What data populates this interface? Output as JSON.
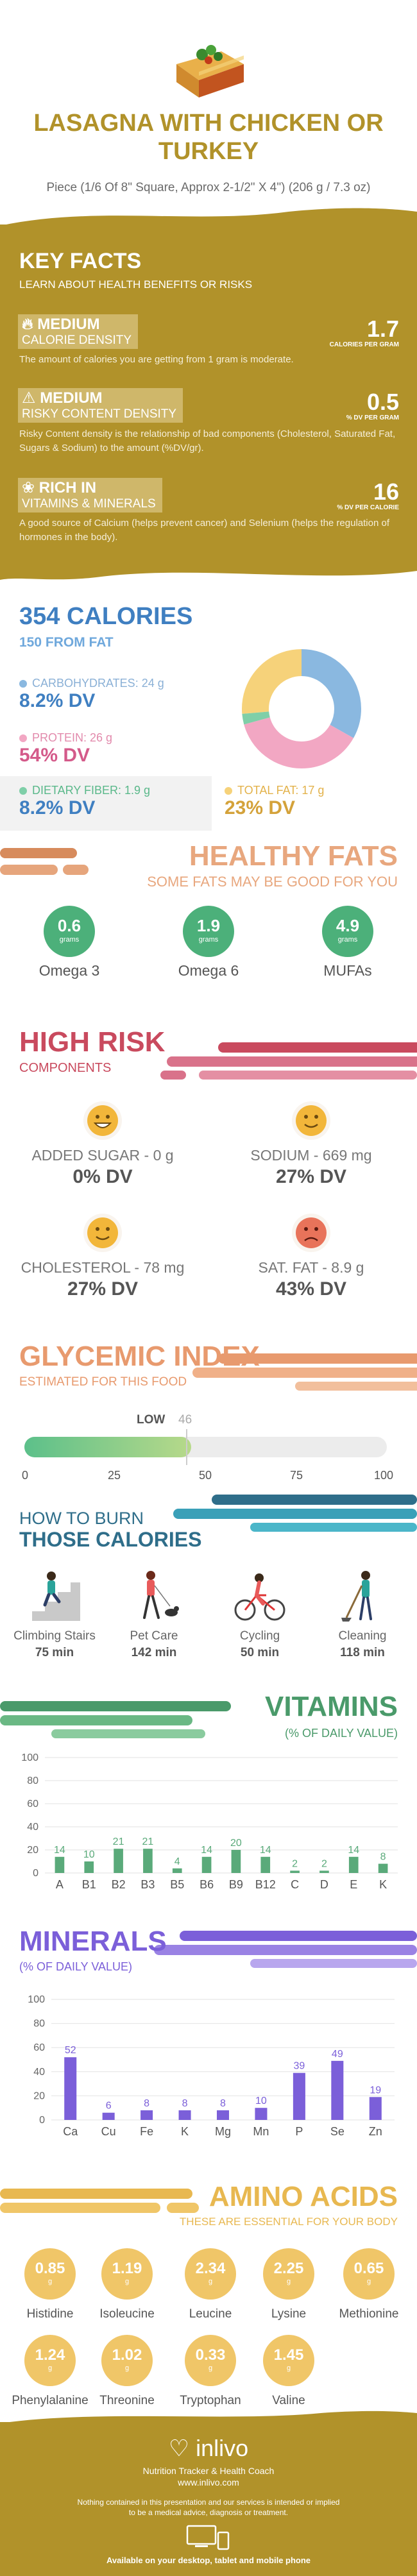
{
  "header": {
    "title": "LASAGNA WITH CHICKEN OR TURKEY",
    "serving": "Piece (1/6 Of 8\" Square, Approx 2-1/2\" X 4\") (206 g / 7.3 oz)"
  },
  "key_facts": {
    "title": "KEY FACTS",
    "subtitle": "LEARN ABOUT HEALTH BENEFITS OR RISKS",
    "items": [
      {
        "tag1": "MEDIUM",
        "tag2": "CALORIE DENSITY",
        "value": "1.7",
        "unit": "CALORIES PER GRAM",
        "desc": "The amount of calories you are getting from 1 gram is moderate."
      },
      {
        "tag1": "MEDIUM",
        "tag2": "RISKY CONTENT DENSITY",
        "value": "0.5",
        "unit": "% DV PER GRAM",
        "desc": "Risky Content density is the relationship of bad components (Cholesterol, Saturated Fat, Sugars & Sodium) to the amount (%DV/gr)."
      },
      {
        "tag1": "RICH  IN",
        "tag2": "VITAMINS & MINERALS",
        "value": "16",
        "unit": "% DV PER CALORIE",
        "desc": "A good source of Calcium (helps prevent cancer) and Selenium (helps the regulation of hormones in the body)."
      }
    ]
  },
  "calories": {
    "title": "354 CALORIES",
    "from_fat": "150 FROM FAT",
    "macros": [
      {
        "label": "CARBOHYDRATES: 24 g",
        "dv": "8.2% DV",
        "color": "#8ab8e0"
      },
      {
        "label": "PROTEIN: 26 g",
        "dv": "54% DV",
        "color": "#f2a7c3"
      },
      {
        "label": "DIETARY FIBER: 1.9 g",
        "dv": "8.2% DV",
        "color": "#7fcfa8"
      },
      {
        "label": "TOTAL FAT: 17 g",
        "dv": "23% DV",
        "color": "#f6d27a"
      }
    ]
  },
  "fats": {
    "title": "HEALTHY FATS",
    "subtitle": "SOME FATS MAY BE GOOD FOR YOU",
    "items": [
      {
        "value": "0.6",
        "unit": "grams",
        "label": "Omega 3"
      },
      {
        "value": "1.9",
        "unit": "grams",
        "label": "Omega 6"
      },
      {
        "value": "4.9",
        "unit": "grams",
        "label": "MUFAs"
      }
    ]
  },
  "risk": {
    "title": "HIGH RISK",
    "subtitle": "COMPONENTS",
    "items": [
      {
        "label": "ADDED SUGAR - 0 g",
        "dv": "0% DV",
        "face": "happy-face-icon"
      },
      {
        "label": "SODIUM - 669 mg",
        "dv": "27% DV",
        "face": "smile-face-icon"
      },
      {
        "label": "CHOLESTEROL - 78 mg",
        "dv": "27% DV",
        "face": "smile-face-icon"
      },
      {
        "label": "SAT. FAT - 8.9 g",
        "dv": "43% DV",
        "face": "sad-face-icon"
      }
    ]
  },
  "gi": {
    "title": "GLYCEMIC INDEX",
    "subtitle": "ESTIMATED FOR THIS FOOD",
    "level": "LOW",
    "value": 46,
    "value_text": "46",
    "ticks": [
      "0",
      "25",
      "50",
      "75",
      "100"
    ]
  },
  "burn": {
    "title1": "HOW TO BURN",
    "title2": "THOSE CALORIES",
    "items": [
      {
        "label": "Climbing Stairs",
        "min": "75 min"
      },
      {
        "label": "Pet Care",
        "min": "142 min"
      },
      {
        "label": "Cycling",
        "min": "50 min"
      },
      {
        "label": "Cleaning",
        "min": "118 min"
      }
    ]
  },
  "vitamins_title": "VITAMINS",
  "vitamins_sub": "(% OF DAILY VALUE)",
  "minerals_title": "MINERALS",
  "minerals_sub": "(% OF DAILY VALUE)",
  "amino": {
    "title": "AMINO ACIDS",
    "subtitle": "THESE ARE ESSENTIAL FOR YOUR BODY",
    "unit": "g",
    "items": [
      {
        "value": "0.85",
        "label": "Histidine"
      },
      {
        "value": "1.19",
        "label": "Isoleucine"
      },
      {
        "value": "2.34",
        "label": "Leucine"
      },
      {
        "value": "2.25",
        "label": "Lysine"
      },
      {
        "value": "0.65",
        "label": "Methionine"
      },
      {
        "value": "1.24",
        "label": "Phenylalanine"
      },
      {
        "value": "1.02",
        "label": "Threonine"
      },
      {
        "value": "0.33",
        "label": "Tryptophan"
      },
      {
        "value": "1.45",
        "label": "Valine"
      }
    ]
  },
  "footer": {
    "brand": "inlivo",
    "tagline": "Nutrition Tracker & Health Coach",
    "site": "www.inlivo.com",
    "disclaimer1": "Nothing contained in this presentation and our services is intended or implied",
    "disclaimer2": "to be a medical advice, diagnosis or treatment.",
    "available": "Available on your desktop, tablet and mobile phone"
  },
  "chart_data": [
    {
      "type": "bar",
      "title": "VITAMINS",
      "subtitle": "(% OF DAILY VALUE)",
      "categories": [
        "A",
        "B1",
        "B2",
        "B3",
        "B5",
        "B6",
        "B9",
        "B12",
        "C",
        "D",
        "E",
        "K"
      ],
      "values": [
        14,
        10,
        21,
        21,
        4,
        14,
        20,
        14,
        2,
        2,
        14,
        8
      ],
      "yticks": [
        "0",
        "20",
        "40",
        "60",
        "80",
        "100"
      ],
      "ylim": [
        0,
        100
      ],
      "color": "#5aaa7a"
    },
    {
      "type": "bar",
      "title": "MINERALS",
      "subtitle": "(% OF DAILY VALUE)",
      "categories": [
        "Ca",
        "Cu",
        "Fe",
        "K",
        "Mg",
        "Mn",
        "P",
        "Se",
        "Zn"
      ],
      "values": [
        52,
        6,
        8,
        8,
        8,
        10,
        39,
        49,
        19
      ],
      "yticks": [
        "0",
        "20",
        "40",
        "60",
        "80",
        "100"
      ],
      "ylim": [
        0,
        100
      ],
      "color": "#7b5fd9"
    }
  ]
}
